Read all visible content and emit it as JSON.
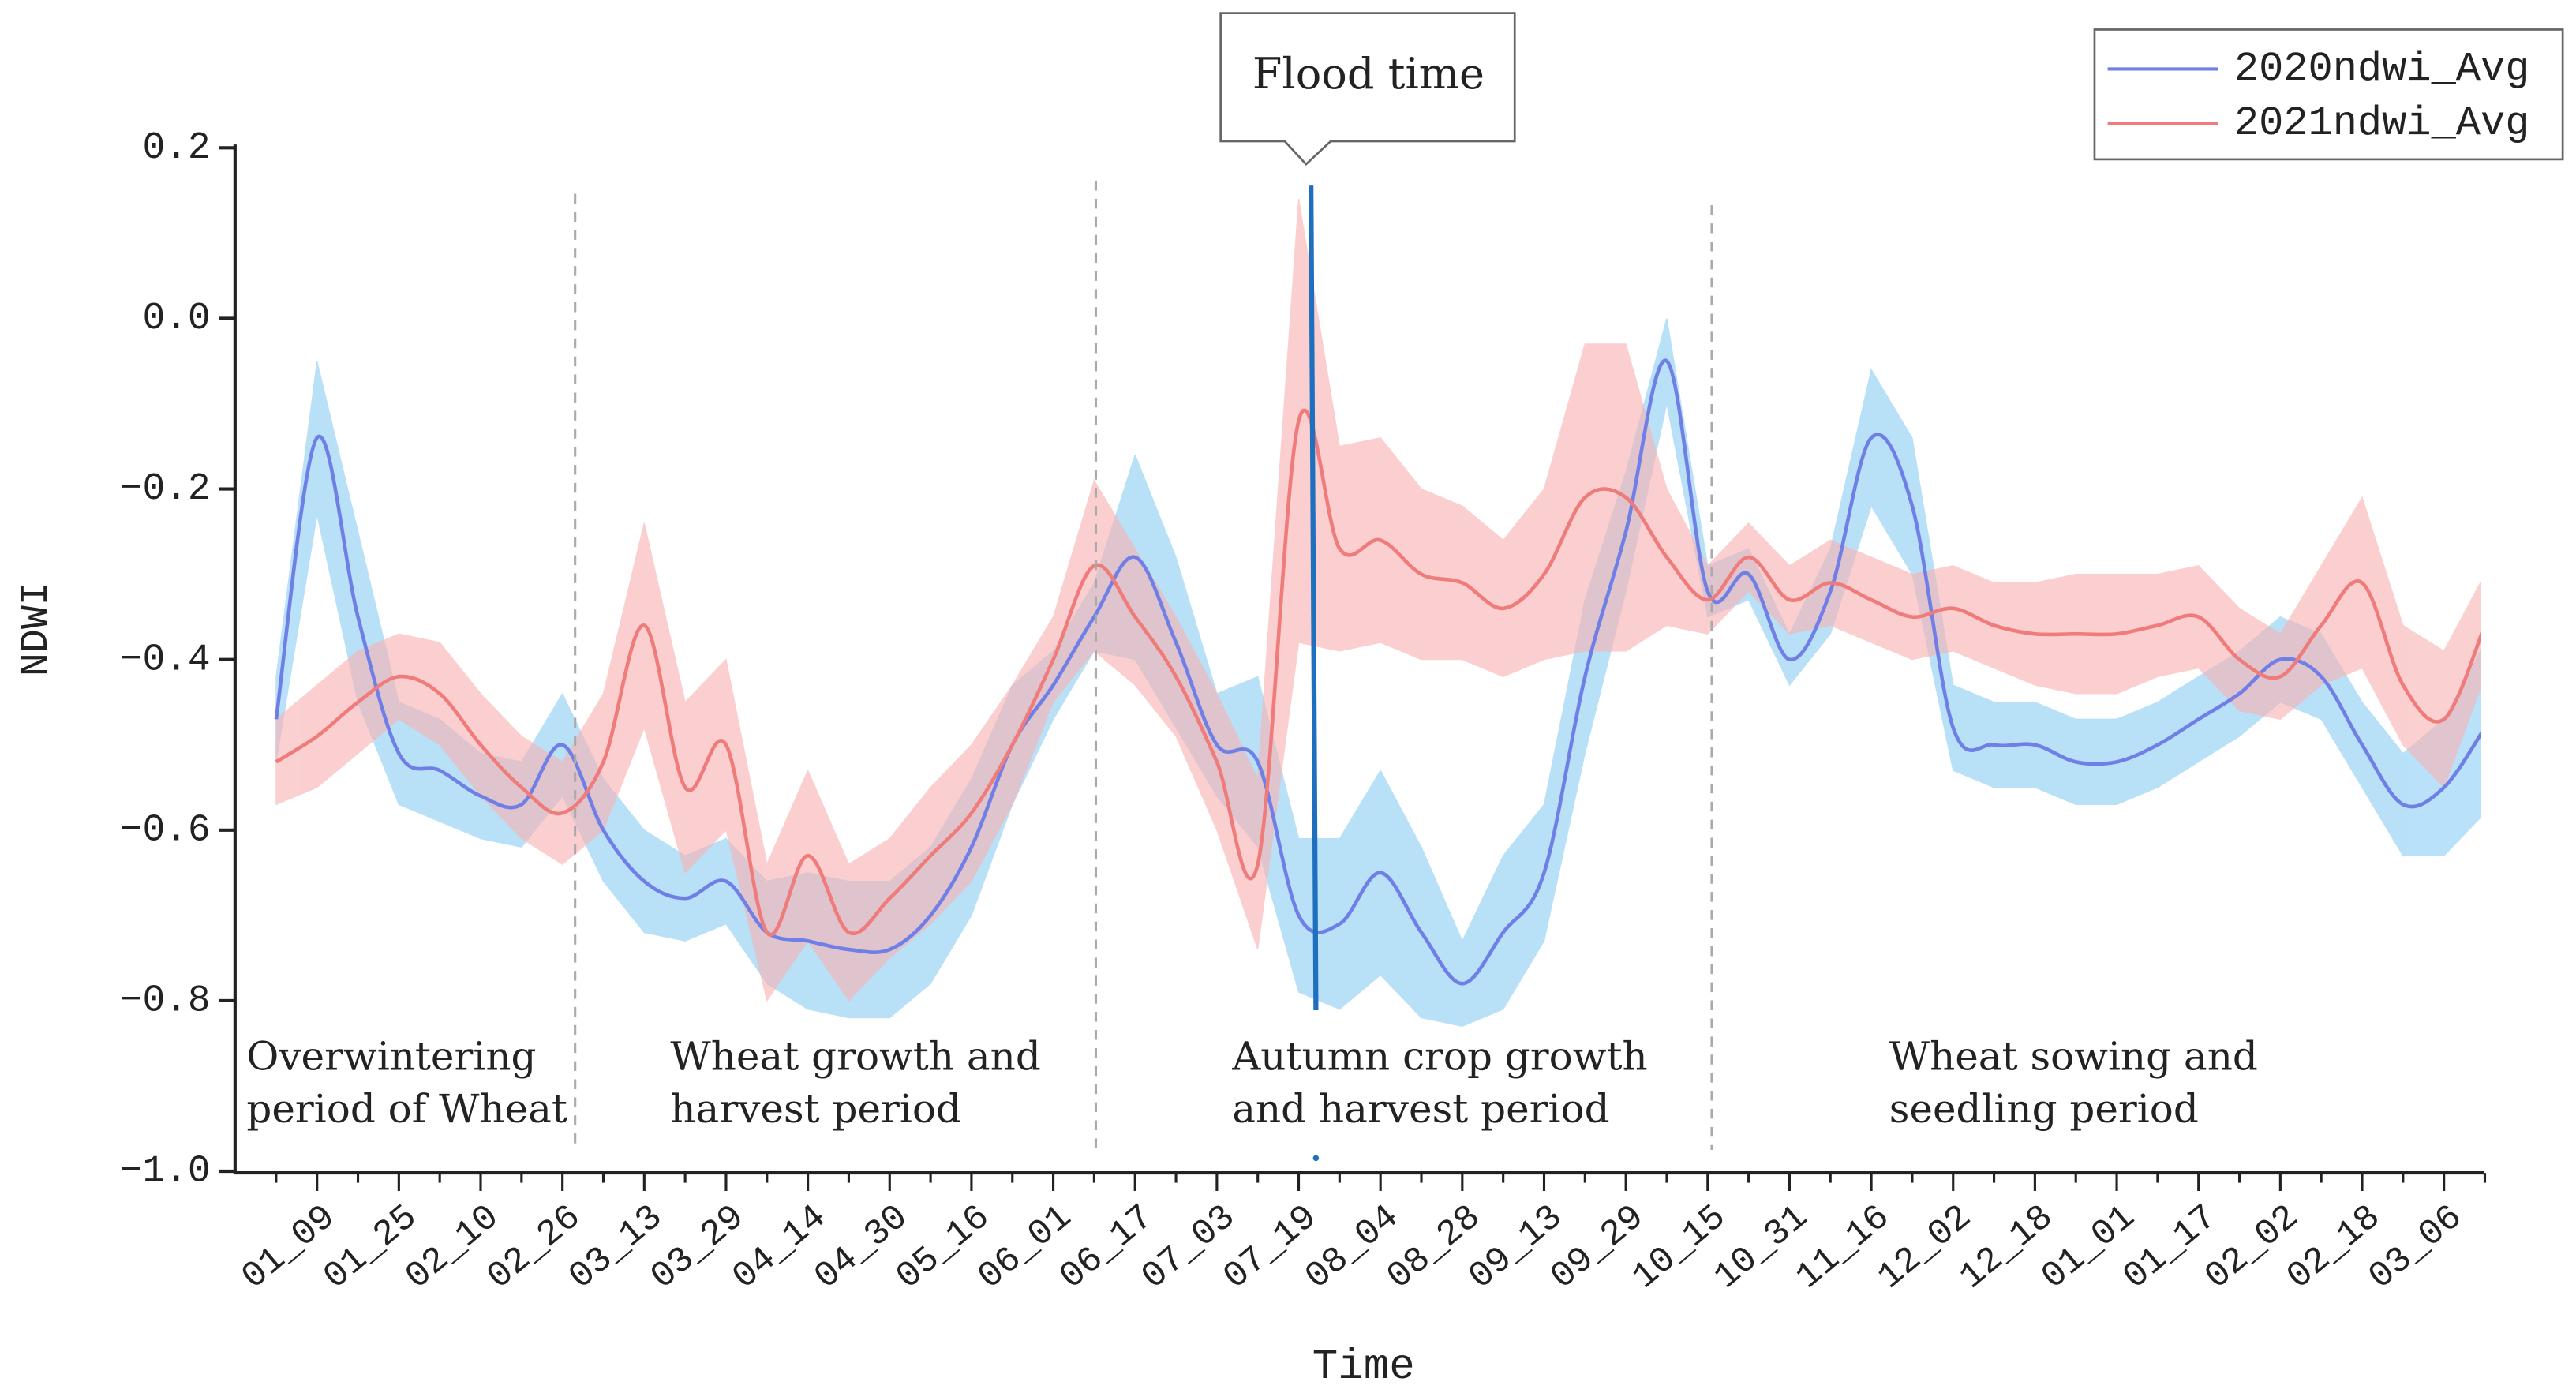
{
  "chart_data": {
    "type": "line",
    "x_label": "Time",
    "y_label": "NDWI",
    "categories": [
      null,
      "01_09",
      null,
      "01_25",
      null,
      "02_10",
      null,
      "02_26",
      null,
      "03_13",
      null,
      "03_29",
      null,
      "04_14",
      null,
      "04_30",
      null,
      "05_16",
      null,
      "06_01",
      null,
      "06_17",
      null,
      "07_03",
      null,
      "07_19",
      null,
      "08_04",
      null,
      "08_28",
      null,
      "09_13",
      null,
      "09_29",
      null,
      "10_15",
      null,
      "10_31",
      null,
      "11_16",
      null,
      "12_02",
      null,
      "12_18",
      null,
      "01_01",
      null,
      "01_17",
      null,
      "02_02",
      null,
      "02_18",
      null,
      "03_06",
      null
    ],
    "series": [
      {
        "name": "2020ndwi_Avg",
        "color": "#6f7fe6",
        "band_color": "#8ecff5",
        "values": [
          -0.47,
          -0.14,
          -0.35,
          -0.51,
          -0.53,
          -0.56,
          -0.57,
          -0.5,
          -0.6,
          -0.66,
          -0.68,
          -0.66,
          -0.72,
          -0.73,
          -0.74,
          -0.74,
          -0.7,
          -0.62,
          -0.5,
          -0.43,
          -0.35,
          -0.28,
          -0.38,
          -0.5,
          -0.52,
          -0.7,
          -0.71,
          -0.65,
          -0.72,
          -0.78,
          -0.72,
          -0.65,
          -0.42,
          -0.25,
          -0.05,
          -0.32,
          -0.3,
          -0.4,
          -0.32,
          -0.14,
          -0.22,
          -0.48,
          -0.5,
          -0.5,
          -0.52,
          -0.52,
          -0.5,
          -0.47,
          -0.44,
          -0.4,
          -0.42,
          -0.5,
          -0.57,
          -0.55,
          -0.48
        ],
        "errors": [
          0.05,
          0.09,
          0.1,
          0.06,
          0.06,
          0.05,
          0.05,
          0.06,
          0.06,
          0.06,
          0.05,
          0.05,
          0.06,
          0.08,
          0.08,
          0.08,
          0.08,
          0.08,
          0.07,
          0.04,
          0.04,
          0.12,
          0.1,
          0.06,
          0.1,
          0.09,
          0.1,
          0.12,
          0.1,
          0.05,
          0.09,
          0.08,
          0.09,
          0.07,
          0.05,
          0.03,
          0.03,
          0.03,
          0.05,
          0.08,
          0.08,
          0.05,
          0.05,
          0.05,
          0.05,
          0.05,
          0.05,
          0.05,
          0.05,
          0.05,
          0.05,
          0.05,
          0.06,
          0.08,
          0.1
        ]
      },
      {
        "name": "2021ndwi_Avg",
        "color": "#ef7b7b",
        "band_color": "#f9b3b3",
        "values": [
          -0.52,
          -0.49,
          -0.45,
          -0.42,
          -0.44,
          -0.5,
          -0.55,
          -0.58,
          -0.52,
          -0.36,
          -0.55,
          -0.5,
          -0.72,
          -0.63,
          -0.72,
          -0.68,
          -0.63,
          -0.58,
          -0.5,
          -0.4,
          -0.29,
          -0.35,
          -0.42,
          -0.52,
          -0.64,
          -0.12,
          -0.27,
          -0.26,
          -0.3,
          -0.31,
          -0.34,
          -0.3,
          -0.21,
          -0.21,
          -0.28,
          -0.33,
          -0.28,
          -0.33,
          -0.31,
          -0.33,
          -0.35,
          -0.34,
          -0.36,
          -0.37,
          -0.37,
          -0.37,
          -0.36,
          -0.35,
          -0.4,
          -0.42,
          -0.36,
          -0.31,
          -0.43,
          -0.47,
          -0.36
        ],
        "errors": [
          0.05,
          0.06,
          0.06,
          0.05,
          0.06,
          0.06,
          0.06,
          0.06,
          0.08,
          0.12,
          0.1,
          0.1,
          0.08,
          0.1,
          0.08,
          0.07,
          0.08,
          0.08,
          0.07,
          0.05,
          0.1,
          0.08,
          0.07,
          0.08,
          0.1,
          0.26,
          0.12,
          0.12,
          0.1,
          0.09,
          0.08,
          0.1,
          0.18,
          0.18,
          0.08,
          0.04,
          0.04,
          0.04,
          0.05,
          0.05,
          0.05,
          0.05,
          0.05,
          0.06,
          0.07,
          0.07,
          0.06,
          0.06,
          0.06,
          0.05,
          0.07,
          0.1,
          0.07,
          0.08,
          0.06
        ]
      }
    ],
    "ylim": [
      -1.0,
      0.2
    ],
    "yticks": [
      {
        "value": -1.0,
        "label": "−1.0"
      },
      {
        "value": -0.8,
        "label": "−0.8"
      },
      {
        "value": -0.6,
        "label": "−0.6"
      },
      {
        "value": -0.4,
        "label": "−0.4"
      },
      {
        "value": -0.2,
        "label": "−0.2"
      },
      {
        "value": 0,
        "label": "0.0"
      },
      0.2
    ],
    "callout": "Flood time",
    "periods": [
      [
        "Overwintering",
        "period of Wheat"
      ],
      [
        "Wheat growth and",
        "harvest period"
      ],
      [
        "Autumn crop growth",
        "and harvest period"
      ],
      [
        "Wheat sowing and",
        "seedling period"
      ]
    ],
    "legend": "upper right"
  }
}
